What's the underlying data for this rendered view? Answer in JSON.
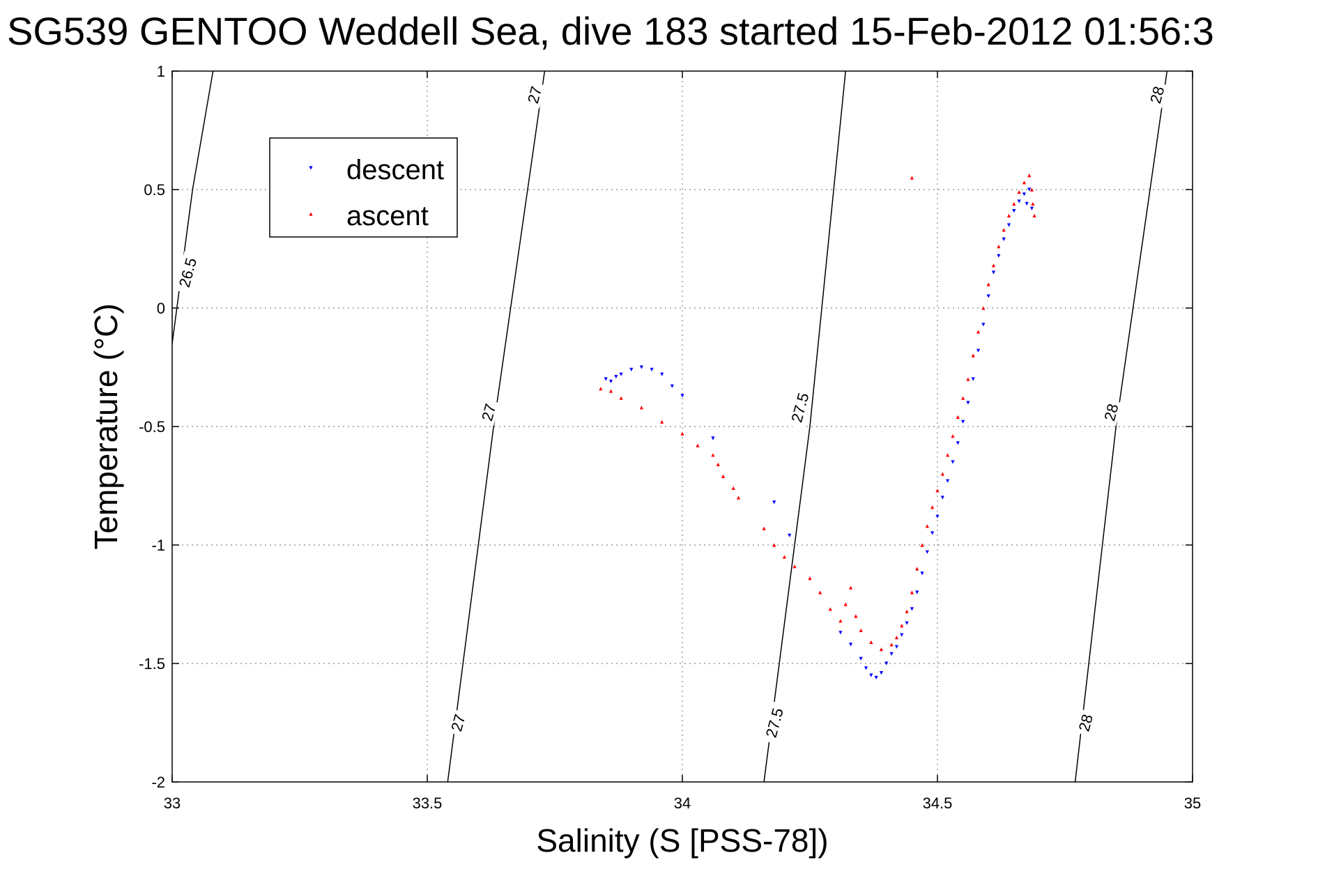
{
  "chart_data": {
    "type": "scatter",
    "title": "SG539 GENTOO Weddell Sea, dive 183 started 15-Feb-2012 01:56:3",
    "xlabel": "Salinity (S [PSS-78])",
    "ylabel": "Temperature (°C)",
    "xlim": [
      33,
      35
    ],
    "ylim": [
      -2,
      1
    ],
    "xticks": [
      "33",
      "33.5",
      "34",
      "34.5",
      "35"
    ],
    "yticks": [
      "1",
      "0.5",
      "0",
      "-0.5",
      "-1",
      "-1.5",
      "-2"
    ],
    "grid": true,
    "legend_position": "top-left",
    "legend": [
      {
        "name": "descent",
        "marker": "triangle-down",
        "color": "#0000ff"
      },
      {
        "name": "ascent",
        "marker": "triangle-up",
        "color": "#ff0000"
      }
    ],
    "isopycnals": [
      {
        "label": "26.5",
        "points": [
          [
            33.0,
            -0.15
          ],
          [
            33.04,
            0.5
          ],
          [
            33.08,
            1.0
          ]
        ]
      },
      {
        "label": "27",
        "points": [
          [
            33.54,
            -2.0
          ],
          [
            33.63,
            -0.5
          ],
          [
            33.73,
            1.0
          ]
        ]
      },
      {
        "label": "27.5",
        "points": [
          [
            34.16,
            -2.0
          ],
          [
            34.25,
            -0.5
          ],
          [
            34.32,
            1.0
          ]
        ]
      },
      {
        "label": "28",
        "points": [
          [
            34.77,
            -2.0
          ],
          [
            34.85,
            -0.5
          ],
          [
            34.95,
            1.0
          ]
        ]
      }
    ],
    "contour_labels": [
      {
        "text": "26.5",
        "s": 33.03,
        "t": 0.15
      },
      {
        "text": "27",
        "s": 33.71,
        "t": 0.9
      },
      {
        "text": "27",
        "s": 33.62,
        "t": -0.44
      },
      {
        "text": "27",
        "s": 33.56,
        "t": -1.75
      },
      {
        "text": "27.5",
        "s": 34.23,
        "t": -0.42
      },
      {
        "text": "27.5",
        "s": 34.18,
        "t": -1.75
      },
      {
        "text": "28",
        "s": 34.93,
        "t": 0.9
      },
      {
        "text": "28",
        "s": 34.84,
        "t": -0.44
      },
      {
        "text": "28",
        "s": 34.79,
        "t": -1.75
      }
    ],
    "series": [
      {
        "name": "descent",
        "color": "#0000ff",
        "points": [
          [
            33.85,
            -0.3
          ],
          [
            33.86,
            -0.31
          ],
          [
            33.87,
            -0.29
          ],
          [
            33.88,
            -0.28
          ],
          [
            33.9,
            -0.26
          ],
          [
            33.92,
            -0.25
          ],
          [
            33.94,
            -0.26
          ],
          [
            33.96,
            -0.28
          ],
          [
            33.98,
            -0.33
          ],
          [
            34.0,
            -0.37
          ],
          [
            34.06,
            -0.55
          ],
          [
            34.18,
            -0.82
          ],
          [
            34.21,
            -0.96
          ],
          [
            34.31,
            -1.37
          ],
          [
            34.33,
            -1.42
          ],
          [
            34.35,
            -1.48
          ],
          [
            34.36,
            -1.52
          ],
          [
            34.37,
            -1.55
          ],
          [
            34.38,
            -1.56
          ],
          [
            34.39,
            -1.54
          ],
          [
            34.4,
            -1.5
          ],
          [
            34.41,
            -1.46
          ],
          [
            34.42,
            -1.43
          ],
          [
            34.43,
            -1.38
          ],
          [
            34.44,
            -1.33
          ],
          [
            34.45,
            -1.27
          ],
          [
            34.46,
            -1.2
          ],
          [
            34.47,
            -1.12
          ],
          [
            34.48,
            -1.03
          ],
          [
            34.49,
            -0.95
          ],
          [
            34.5,
            -0.88
          ],
          [
            34.51,
            -0.8
          ],
          [
            34.52,
            -0.73
          ],
          [
            34.53,
            -0.65
          ],
          [
            34.54,
            -0.57
          ],
          [
            34.55,
            -0.48
          ],
          [
            34.56,
            -0.4
          ],
          [
            34.57,
            -0.3
          ],
          [
            34.58,
            -0.18
          ],
          [
            34.59,
            -0.07
          ],
          [
            34.6,
            0.05
          ],
          [
            34.61,
            0.15
          ],
          [
            34.62,
            0.22
          ],
          [
            34.63,
            0.29
          ],
          [
            34.64,
            0.35
          ],
          [
            34.65,
            0.41
          ],
          [
            34.66,
            0.45
          ],
          [
            34.67,
            0.48
          ],
          [
            34.675,
            0.44
          ],
          [
            34.68,
            0.5
          ],
          [
            34.685,
            0.42
          ]
        ]
      },
      {
        "name": "ascent",
        "color": "#ff0000",
        "points": [
          [
            33.84,
            -0.34
          ],
          [
            33.86,
            -0.35
          ],
          [
            33.88,
            -0.38
          ],
          [
            33.92,
            -0.42
          ],
          [
            33.96,
            -0.48
          ],
          [
            34.0,
            -0.53
          ],
          [
            34.03,
            -0.58
          ],
          [
            34.06,
            -0.62
          ],
          [
            34.07,
            -0.66
          ],
          [
            34.08,
            -0.71
          ],
          [
            34.1,
            -0.76
          ],
          [
            34.11,
            -0.8
          ],
          [
            34.16,
            -0.93
          ],
          [
            34.18,
            -1.0
          ],
          [
            34.2,
            -1.05
          ],
          [
            34.22,
            -1.09
          ],
          [
            34.25,
            -1.14
          ],
          [
            34.27,
            -1.2
          ],
          [
            34.29,
            -1.27
          ],
          [
            34.31,
            -1.32
          ],
          [
            34.32,
            -1.25
          ],
          [
            34.33,
            -1.18
          ],
          [
            34.34,
            -1.3
          ],
          [
            34.35,
            -1.36
          ],
          [
            34.37,
            -1.41
          ],
          [
            34.39,
            -1.44
          ],
          [
            34.41,
            -1.42
          ],
          [
            34.42,
            -1.39
          ],
          [
            34.43,
            -1.34
          ],
          [
            34.44,
            -1.28
          ],
          [
            34.45,
            -1.2
          ],
          [
            34.46,
            -1.1
          ],
          [
            34.47,
            -1.0
          ],
          [
            34.48,
            -0.92
          ],
          [
            34.49,
            -0.84
          ],
          [
            34.5,
            -0.77
          ],
          [
            34.51,
            -0.7
          ],
          [
            34.52,
            -0.62
          ],
          [
            34.53,
            -0.54
          ],
          [
            34.54,
            -0.46
          ],
          [
            34.55,
            -0.38
          ],
          [
            34.56,
            -0.3
          ],
          [
            34.57,
            -0.2
          ],
          [
            34.58,
            -0.1
          ],
          [
            34.59,
            0.0
          ],
          [
            34.6,
            0.1
          ],
          [
            34.61,
            0.18
          ],
          [
            34.62,
            0.26
          ],
          [
            34.63,
            0.33
          ],
          [
            34.64,
            0.39
          ],
          [
            34.65,
            0.44
          ],
          [
            34.66,
            0.49
          ],
          [
            34.67,
            0.53
          ],
          [
            34.68,
            0.56
          ],
          [
            34.685,
            0.5
          ],
          [
            34.687,
            0.44
          ],
          [
            34.69,
            0.39
          ],
          [
            34.45,
            0.55
          ]
        ]
      }
    ]
  }
}
